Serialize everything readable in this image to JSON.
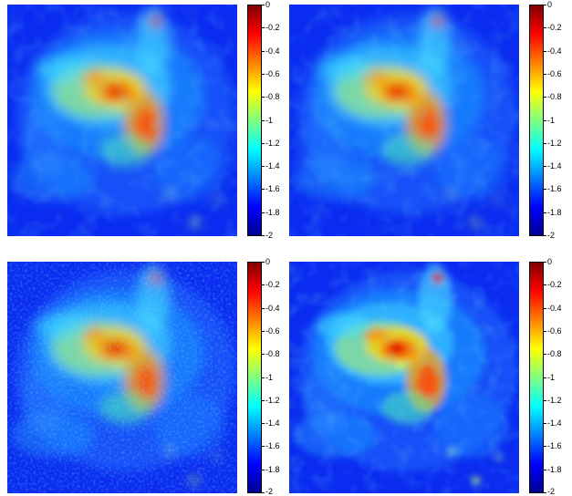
{
  "figure": {
    "panel_count": 4,
    "colormap": [
      "#00008f",
      "#0000ff",
      "#0080ff",
      "#00ffff",
      "#80ff80",
      "#ffff00",
      "#ff8000",
      "#ff0000",
      "#800000"
    ],
    "colorbar": {
      "min": -2,
      "max": 0,
      "ticks": [
        "0",
        "-0.2",
        "-0.4",
        "-0.6",
        "-0.8",
        "-1",
        "-1.2",
        "-1.4",
        "-1.6",
        "-1.8",
        "-2"
      ]
    },
    "panels": [
      {
        "texture": "smooth"
      },
      {
        "texture": "smooth-filtered"
      },
      {
        "texture": "noisy"
      },
      {
        "texture": "blocky"
      }
    ]
  }
}
